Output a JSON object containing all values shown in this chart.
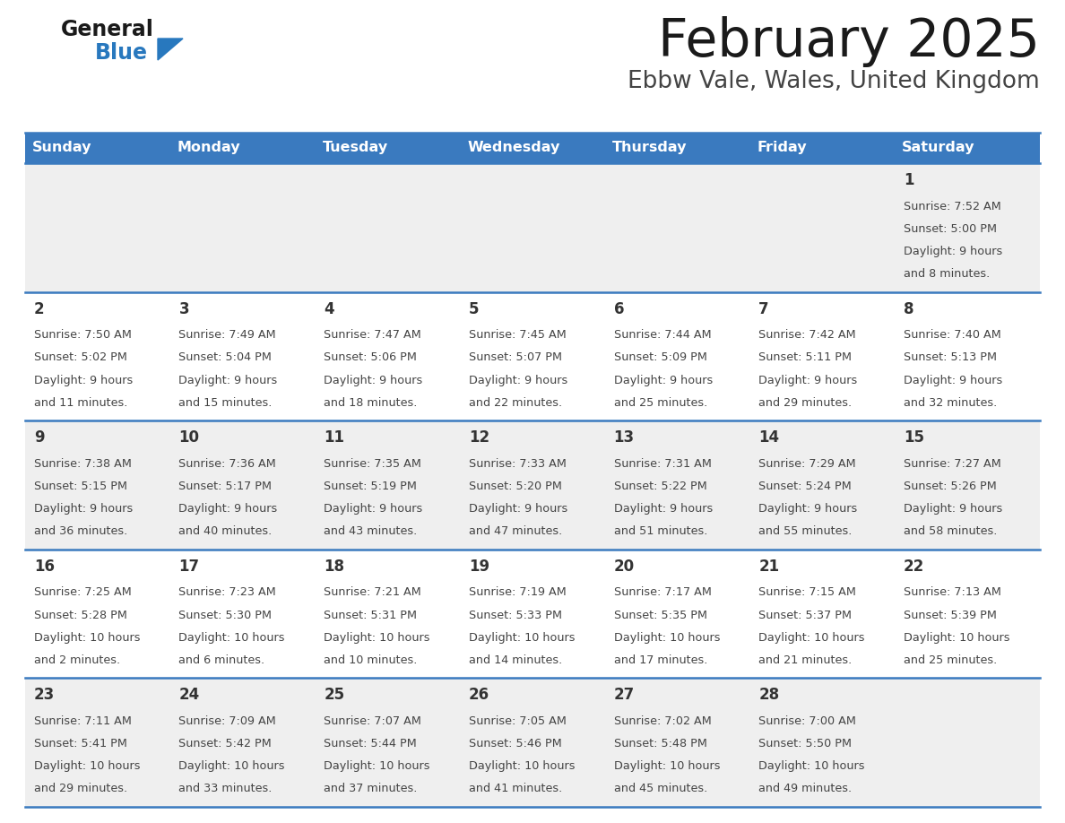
{
  "title": "February 2025",
  "subtitle": "Ebbw Vale, Wales, United Kingdom",
  "header_bg": "#3a7abf",
  "header_text": "#ffffff",
  "weekdays": [
    "Sunday",
    "Monday",
    "Tuesday",
    "Wednesday",
    "Thursday",
    "Friday",
    "Saturday"
  ],
  "row_bg_even": "#efefef",
  "row_bg_odd": "#ffffff",
  "separator_color": "#3a7abf",
  "day_number_color": "#333333",
  "info_text_color": "#444444",
  "logo_general_color": "#1a1a1a",
  "logo_blue_color": "#2878be",
  "days": [
    {
      "day": 1,
      "col": 6,
      "row": 0,
      "sunrise": "7:52 AM",
      "sunset": "5:00 PM",
      "daylight_hours": 9,
      "daylight_minutes": 8
    },
    {
      "day": 2,
      "col": 0,
      "row": 1,
      "sunrise": "7:50 AM",
      "sunset": "5:02 PM",
      "daylight_hours": 9,
      "daylight_minutes": 11
    },
    {
      "day": 3,
      "col": 1,
      "row": 1,
      "sunrise": "7:49 AM",
      "sunset": "5:04 PM",
      "daylight_hours": 9,
      "daylight_minutes": 15
    },
    {
      "day": 4,
      "col": 2,
      "row": 1,
      "sunrise": "7:47 AM",
      "sunset": "5:06 PM",
      "daylight_hours": 9,
      "daylight_minutes": 18
    },
    {
      "day": 5,
      "col": 3,
      "row": 1,
      "sunrise": "7:45 AM",
      "sunset": "5:07 PM",
      "daylight_hours": 9,
      "daylight_minutes": 22
    },
    {
      "day": 6,
      "col": 4,
      "row": 1,
      "sunrise": "7:44 AM",
      "sunset": "5:09 PM",
      "daylight_hours": 9,
      "daylight_minutes": 25
    },
    {
      "day": 7,
      "col": 5,
      "row": 1,
      "sunrise": "7:42 AM",
      "sunset": "5:11 PM",
      "daylight_hours": 9,
      "daylight_minutes": 29
    },
    {
      "day": 8,
      "col": 6,
      "row": 1,
      "sunrise": "7:40 AM",
      "sunset": "5:13 PM",
      "daylight_hours": 9,
      "daylight_minutes": 32
    },
    {
      "day": 9,
      "col": 0,
      "row": 2,
      "sunrise": "7:38 AM",
      "sunset": "5:15 PM",
      "daylight_hours": 9,
      "daylight_minutes": 36
    },
    {
      "day": 10,
      "col": 1,
      "row": 2,
      "sunrise": "7:36 AM",
      "sunset": "5:17 PM",
      "daylight_hours": 9,
      "daylight_minutes": 40
    },
    {
      "day": 11,
      "col": 2,
      "row": 2,
      "sunrise": "7:35 AM",
      "sunset": "5:19 PM",
      "daylight_hours": 9,
      "daylight_minutes": 43
    },
    {
      "day": 12,
      "col": 3,
      "row": 2,
      "sunrise": "7:33 AM",
      "sunset": "5:20 PM",
      "daylight_hours": 9,
      "daylight_minutes": 47
    },
    {
      "day": 13,
      "col": 4,
      "row": 2,
      "sunrise": "7:31 AM",
      "sunset": "5:22 PM",
      "daylight_hours": 9,
      "daylight_minutes": 51
    },
    {
      "day": 14,
      "col": 5,
      "row": 2,
      "sunrise": "7:29 AM",
      "sunset": "5:24 PM",
      "daylight_hours": 9,
      "daylight_minutes": 55
    },
    {
      "day": 15,
      "col": 6,
      "row": 2,
      "sunrise": "7:27 AM",
      "sunset": "5:26 PM",
      "daylight_hours": 9,
      "daylight_minutes": 58
    },
    {
      "day": 16,
      "col": 0,
      "row": 3,
      "sunrise": "7:25 AM",
      "sunset": "5:28 PM",
      "daylight_hours": 10,
      "daylight_minutes": 2
    },
    {
      "day": 17,
      "col": 1,
      "row": 3,
      "sunrise": "7:23 AM",
      "sunset": "5:30 PM",
      "daylight_hours": 10,
      "daylight_minutes": 6
    },
    {
      "day": 18,
      "col": 2,
      "row": 3,
      "sunrise": "7:21 AM",
      "sunset": "5:31 PM",
      "daylight_hours": 10,
      "daylight_minutes": 10
    },
    {
      "day": 19,
      "col": 3,
      "row": 3,
      "sunrise": "7:19 AM",
      "sunset": "5:33 PM",
      "daylight_hours": 10,
      "daylight_minutes": 14
    },
    {
      "day": 20,
      "col": 4,
      "row": 3,
      "sunrise": "7:17 AM",
      "sunset": "5:35 PM",
      "daylight_hours": 10,
      "daylight_minutes": 17
    },
    {
      "day": 21,
      "col": 5,
      "row": 3,
      "sunrise": "7:15 AM",
      "sunset": "5:37 PM",
      "daylight_hours": 10,
      "daylight_minutes": 21
    },
    {
      "day": 22,
      "col": 6,
      "row": 3,
      "sunrise": "7:13 AM",
      "sunset": "5:39 PM",
      "daylight_hours": 10,
      "daylight_minutes": 25
    },
    {
      "day": 23,
      "col": 0,
      "row": 4,
      "sunrise": "7:11 AM",
      "sunset": "5:41 PM",
      "daylight_hours": 10,
      "daylight_minutes": 29
    },
    {
      "day": 24,
      "col": 1,
      "row": 4,
      "sunrise": "7:09 AM",
      "sunset": "5:42 PM",
      "daylight_hours": 10,
      "daylight_minutes": 33
    },
    {
      "day": 25,
      "col": 2,
      "row": 4,
      "sunrise": "7:07 AM",
      "sunset": "5:44 PM",
      "daylight_hours": 10,
      "daylight_minutes": 37
    },
    {
      "day": 26,
      "col": 3,
      "row": 4,
      "sunrise": "7:05 AM",
      "sunset": "5:46 PM",
      "daylight_hours": 10,
      "daylight_minutes": 41
    },
    {
      "day": 27,
      "col": 4,
      "row": 4,
      "sunrise": "7:02 AM",
      "sunset": "5:48 PM",
      "daylight_hours": 10,
      "daylight_minutes": 45
    },
    {
      "day": 28,
      "col": 5,
      "row": 4,
      "sunrise": "7:00 AM",
      "sunset": "5:50 PM",
      "daylight_hours": 10,
      "daylight_minutes": 49
    }
  ]
}
